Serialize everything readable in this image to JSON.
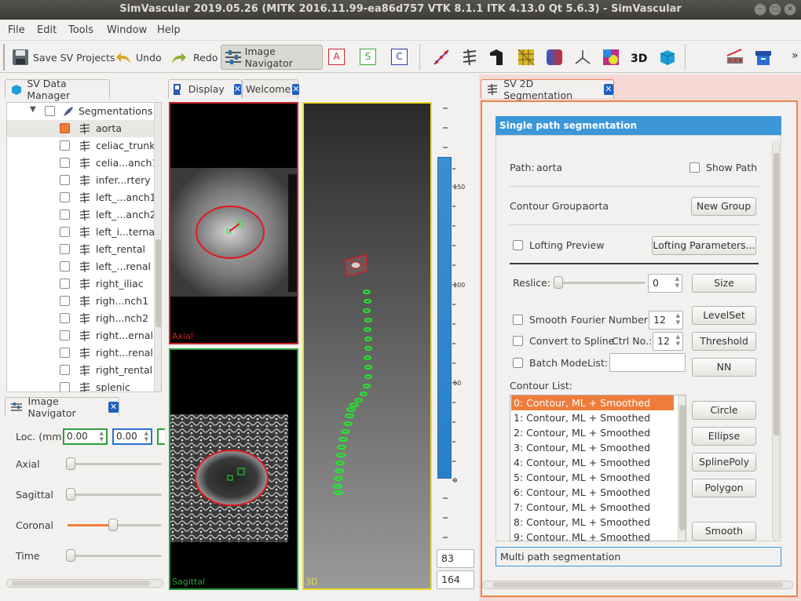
{
  "window": {
    "title": "SimVascular 2019.05.26 (MITK 2016.11.99-ea86d757 VTK 8.1.1 ITK 4.13.0 Qt 5.6.3) - SimVascular"
  },
  "menu": [
    "File",
    "Edit",
    "Tools",
    "Window",
    "Help"
  ],
  "toolbar": {
    "save_label": "Save SV Projects",
    "undo_label": "Undo",
    "redo_label": "Redo",
    "image_navigator_label": "Image Navigator",
    "letters": [
      "A",
      "S",
      "C"
    ],
    "overflow": "»"
  },
  "data_manager": {
    "tab_label": "SV Data Manager",
    "group_label": "Segmentations",
    "items": [
      "aorta",
      "celiac_trunk",
      "celia...anch1",
      "infer...rtery",
      "left_...anch1",
      "left_...anch2",
      "left_i...ternal",
      "left_rental",
      "left_...renal",
      "right_iliac",
      "righ...nch1",
      "righ...nch2",
      "right...ernal",
      "right...renal",
      "right_rental",
      "splenic"
    ]
  },
  "image_navigator": {
    "tab_label": "Image Navigator",
    "loc_label": "Loc. (mm)",
    "loc_values": [
      "0.00",
      "0.00"
    ],
    "sliders": [
      {
        "label": "Axial",
        "level": 0.0
      },
      {
        "label": "Sagittal",
        "level": 0.0
      },
      {
        "label": "Coronal",
        "level": 0.5
      },
      {
        "label": "Time",
        "level": 0.0
      }
    ]
  },
  "display": {
    "tabs": [
      "Display",
      "Welcome"
    ],
    "views": {
      "axial": "Axial",
      "sagittal": "Sagittal",
      "threed": "3D"
    },
    "colorbar_ticks": [
      "150",
      "100",
      "50",
      "0"
    ],
    "level_value": "83",
    "window_value": "164"
  },
  "segmentation": {
    "tab_label": "SV 2D Segmentation",
    "header": "Single path segmentation",
    "path_label": "Path:",
    "path_value": "aorta",
    "show_path_label": "Show Path",
    "contour_group_label": "Contour Group:",
    "contour_group_value": "aorta",
    "new_group_button": "New Group",
    "lofting_preview_label": "Lofting Preview",
    "lofting_params_button": "Lofting Parameters...",
    "reslice_label": "Reslice:",
    "reslice_value": "0",
    "size_button": "Size",
    "smooth_label": "Smooth",
    "fourier_label": "Fourier Number:",
    "fourier_value": "12",
    "levelset_button": "LevelSet",
    "convert_label": "Convert to Spline",
    "ctrl_label": "Ctrl No.:",
    "ctrl_value": "12",
    "threshold_button": "Threshold",
    "batch_label": "Batch Mode",
    "list_label": "List:",
    "nn_button": "NN",
    "contour_list_label": "Contour List:",
    "contours": [
      "0: Contour, ML + Smoothed",
      "1: Contour, ML + Smoothed",
      "2: Contour, ML + Smoothed",
      "3: Contour, ML + Smoothed",
      "4: Contour, ML + Smoothed",
      "5: Contour, ML + Smoothed",
      "6: Contour, ML + Smoothed",
      "7: Contour, ML + Smoothed",
      "8: Contour, ML + Smoothed",
      "9: Contour, ML + Smoothed"
    ],
    "shape_buttons": [
      "Circle",
      "Ellipse",
      "SplinePoly",
      "Polygon"
    ],
    "smooth_button": "Smooth",
    "multi_path_label": "Multi path segmentation"
  },
  "colors": {
    "accent": "#3b97d8",
    "selection": "#f07c3c",
    "axial_border": "#c8262a",
    "sagittal_border": "#2e9e3a",
    "threed_border": "#e6e02a",
    "contour": "#e0191e",
    "marker": "#22e82a"
  }
}
